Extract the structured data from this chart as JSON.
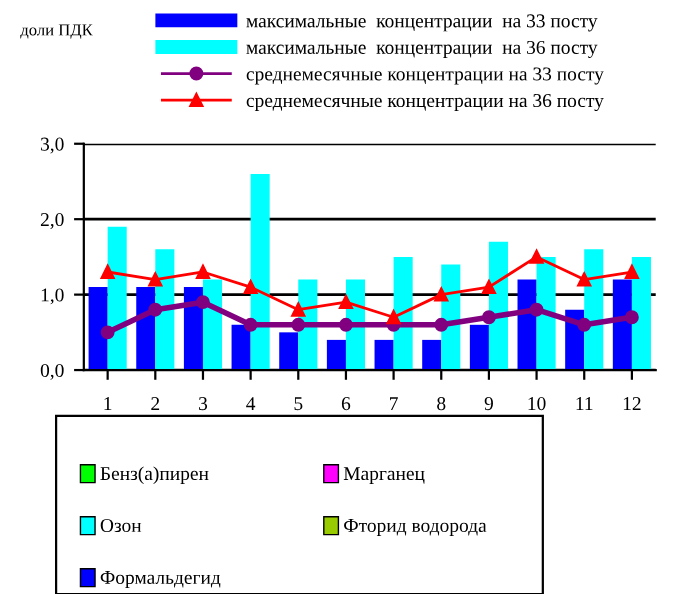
{
  "chart_data": [
    {
      "type": "bar",
      "ylabel": "доли ПДК",
      "categories": [
        "1",
        "2",
        "3",
        "4",
        "5",
        "6",
        "7",
        "8",
        "9",
        "10",
        "11",
        "12"
      ],
      "series": [
        {
          "name": "максимальные  концентрации  на 33 посту",
          "color": "#0000ff",
          "values": [
            1.1,
            1.1,
            1.1,
            0.6,
            0.5,
            0.4,
            0.4,
            0.4,
            0.6,
            1.2,
            0.8,
            1.2
          ]
        },
        {
          "name": "максимальные  концентрации  на 36 посту",
          "color": "#00ffff",
          "values": [
            1.9,
            1.6,
            1.2,
            2.6,
            1.2,
            1.2,
            1.5,
            1.4,
            1.7,
            1.5,
            1.6,
            1.5
          ]
        },
        {
          "name": "среднемесячные концентрации на 33 посту",
          "type": "line",
          "color": "#800080",
          "marker": "circle",
          "values": [
            0.5,
            0.8,
            0.9,
            0.6,
            0.6,
            0.6,
            0.6,
            0.6,
            0.7,
            0.8,
            0.6,
            0.7
          ]
        },
        {
          "name": "среднемесячные концентрации на 36 посту",
          "type": "line",
          "color": "#ff0000",
          "marker": "triangle",
          "values": [
            1.3,
            1.2,
            1.3,
            1.1,
            0.8,
            0.9,
            0.7,
            1.0,
            1.1,
            1.5,
            1.2,
            1.3
          ]
        }
      ],
      "ylim": [
        0,
        3
      ],
      "yticks": [
        {
          "value": 0,
          "label": "0,0"
        },
        {
          "value": 1,
          "label": "1,0"
        },
        {
          "value": 2,
          "label": "2,0"
        },
        {
          "value": 3,
          "label": "3,0"
        }
      ],
      "grid": "y",
      "legend": "top"
    },
    {
      "type": "other",
      "series": [
        {
          "name": "Бенз(а)пирен",
          "color": "#00ff00"
        },
        {
          "name": "Марганец",
          "color": "#ff00ff"
        },
        {
          "name": "Озон",
          "color": "#00ffff"
        },
        {
          "name": "Фторид водорода",
          "color": "#99cc00"
        },
        {
          "name": "Формальдегид",
          "color": "#0000ff"
        }
      ]
    }
  ]
}
